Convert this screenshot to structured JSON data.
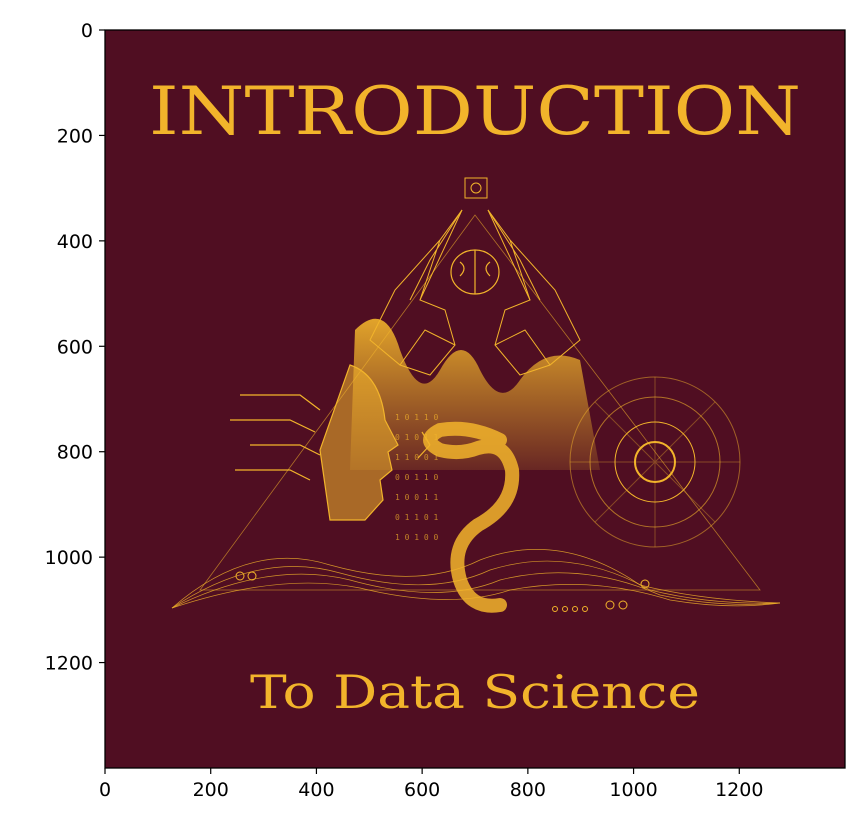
{
  "chart_data": {
    "type": "image",
    "xlim": [
      0,
      1400
    ],
    "ylim": [
      1400,
      0
    ],
    "xticks": [
      0,
      200,
      400,
      600,
      800,
      1000,
      1200
    ],
    "yticks": [
      0,
      200,
      400,
      600,
      800,
      1000,
      1200
    ],
    "xtick_labels": [
      "0",
      "200",
      "400",
      "600",
      "800",
      "1000",
      "1200"
    ],
    "ytick_labels": [
      "0",
      "200",
      "400",
      "600",
      "800",
      "1000",
      "1200"
    ],
    "grid": false,
    "image": {
      "background": "#500E22",
      "accent": "#F2B42B",
      "title_line1": "INTRODUCTION",
      "title_line2": "To Data Science"
    }
  }
}
